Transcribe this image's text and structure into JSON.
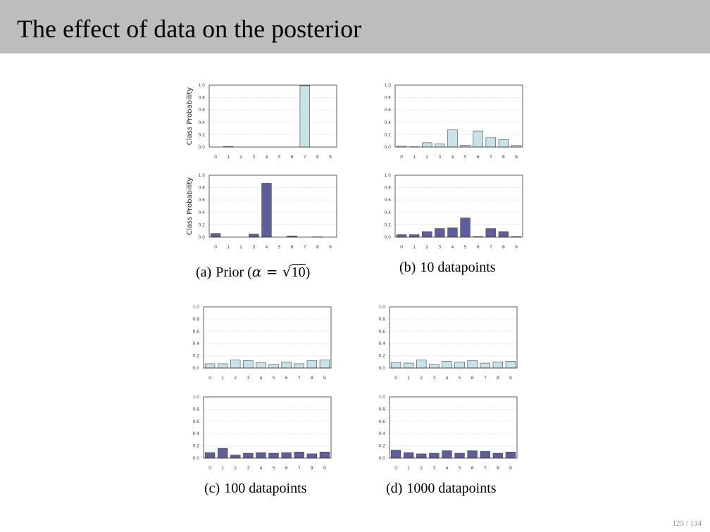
{
  "header": {
    "title": "The effect of data on the posterior"
  },
  "footer": {
    "page": "125",
    "total": "134"
  },
  "colors": {
    "light_bar": "#c5e4ea",
    "dark_bar": "#5e5e9c",
    "bar_edge": "#444444",
    "header_bg": "#bdbdbd"
  },
  "captions": {
    "a": {
      "tag": "(a)",
      "text_before": "Prior (",
      "symbol": "α",
      "equals": " = ",
      "sqrt_arg": "10",
      "text_after": ")"
    },
    "b": {
      "tag": "(b)",
      "text": "10 datapoints"
    },
    "c": {
      "tag": "(c)",
      "text": "100 datapoints"
    },
    "d": {
      "tag": "(d)",
      "text": "1000 datapoints"
    }
  },
  "chart_data": [
    {
      "id": "a-top",
      "panel": "a",
      "type": "bar",
      "style": "light",
      "ylabel": "Class Probability",
      "ylim": [
        0,
        1
      ],
      "yticks": [
        "0.0",
        "0.2",
        "0.4",
        "0.6",
        "0.8",
        "1.0"
      ],
      "grid": true,
      "categories": [
        "0",
        "1",
        "2",
        "3",
        "4",
        "5",
        "6",
        "7",
        "8",
        "9"
      ],
      "values": [
        0.0,
        0.01,
        0.0,
        0.0,
        0.0,
        0.0,
        0.0,
        0.99,
        0.0,
        0.0
      ]
    },
    {
      "id": "a-bottom",
      "panel": "a",
      "type": "bar",
      "style": "dark",
      "ylabel": "Class Probability",
      "ylim": [
        0,
        1
      ],
      "yticks": [
        "0.0",
        "0.2",
        "0.4",
        "0.6",
        "0.8",
        "1.0"
      ],
      "grid": true,
      "categories": [
        "0",
        "1",
        "2",
        "3",
        "4",
        "5",
        "6",
        "7",
        "8",
        "9"
      ],
      "values": [
        0.06,
        0.0,
        0.0,
        0.05,
        0.87,
        0.0,
        0.02,
        0.0,
        0.005,
        0.0
      ]
    },
    {
      "id": "b-top",
      "panel": "b",
      "type": "bar",
      "style": "light",
      "ylabel": "",
      "ylim": [
        0,
        1
      ],
      "yticks": [
        "0.0",
        "0.2",
        "0.4",
        "0.6",
        "0.8",
        "1.0"
      ],
      "grid": true,
      "categories": [
        "0",
        "1",
        "2",
        "3",
        "4",
        "5",
        "6",
        "7",
        "8",
        "9"
      ],
      "values": [
        0.015,
        0.005,
        0.07,
        0.05,
        0.28,
        0.03,
        0.26,
        0.15,
        0.12,
        0.025
      ]
    },
    {
      "id": "b-bottom",
      "panel": "b",
      "type": "bar",
      "style": "dark",
      "ylabel": "",
      "ylim": [
        0,
        1
      ],
      "yticks": [
        "0.0",
        "0.2",
        "0.4",
        "0.6",
        "0.8",
        "1.0"
      ],
      "grid": true,
      "categories": [
        "0",
        "1",
        "2",
        "3",
        "4",
        "5",
        "6",
        "7",
        "8",
        "9"
      ],
      "values": [
        0.04,
        0.04,
        0.09,
        0.14,
        0.15,
        0.31,
        0.01,
        0.14,
        0.09,
        0.01
      ]
    },
    {
      "id": "c-top",
      "panel": "c",
      "type": "bar",
      "style": "light",
      "ylabel": "",
      "ylim": [
        0,
        1
      ],
      "yticks": [
        "0.0",
        "0.2",
        "0.4",
        "0.6",
        "0.8",
        "1.0"
      ],
      "grid": true,
      "categories": [
        "0",
        "1",
        "2",
        "3",
        "4",
        "5",
        "6",
        "7",
        "8",
        "9"
      ],
      "values": [
        0.07,
        0.07,
        0.13,
        0.12,
        0.09,
        0.06,
        0.1,
        0.07,
        0.12,
        0.13
      ]
    },
    {
      "id": "c-bottom",
      "panel": "c",
      "type": "bar",
      "style": "dark",
      "ylabel": "",
      "ylim": [
        0,
        1
      ],
      "yticks": [
        "0.0",
        "0.2",
        "0.4",
        "0.6",
        "0.8",
        "1.0"
      ],
      "grid": true,
      "categories": [
        "0",
        "1",
        "2",
        "3",
        "4",
        "5",
        "6",
        "7",
        "8",
        "9"
      ],
      "values": [
        0.09,
        0.16,
        0.05,
        0.08,
        0.09,
        0.08,
        0.09,
        0.1,
        0.07,
        0.1
      ]
    },
    {
      "id": "d-top",
      "panel": "d",
      "type": "bar",
      "style": "light",
      "ylabel": "",
      "ylim": [
        0,
        1
      ],
      "yticks": [
        "0.0",
        "0.2",
        "0.4",
        "0.6",
        "0.8",
        "1.0"
      ],
      "grid": true,
      "categories": [
        "0",
        "1",
        "2",
        "3",
        "4",
        "5",
        "6",
        "7",
        "8",
        "9"
      ],
      "values": [
        0.09,
        0.08,
        0.13,
        0.06,
        0.11,
        0.1,
        0.12,
        0.08,
        0.1,
        0.11
      ]
    },
    {
      "id": "d-bottom",
      "panel": "d",
      "type": "bar",
      "style": "dark",
      "ylabel": "",
      "ylim": [
        0,
        1
      ],
      "yticks": [
        "0.0",
        "0.2",
        "0.4",
        "0.6",
        "0.8",
        "1.0"
      ],
      "grid": true,
      "categories": [
        "0",
        "1",
        "2",
        "3",
        "4",
        "5",
        "6",
        "7",
        "8",
        "9"
      ],
      "values": [
        0.13,
        0.09,
        0.07,
        0.08,
        0.12,
        0.08,
        0.12,
        0.11,
        0.08,
        0.1
      ]
    }
  ]
}
